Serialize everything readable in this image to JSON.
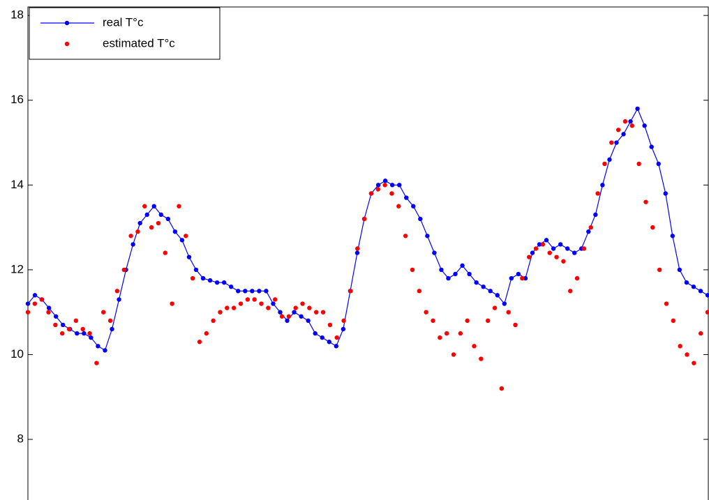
{
  "chart_data": {
    "type": "line",
    "ylim": [
      6.57,
      18.2
    ],
    "yticks": [
      8,
      10,
      12,
      14,
      16,
      18
    ],
    "legend": "upper left",
    "series": [
      {
        "name": "real T°c",
        "color": "#0000ff",
        "style": "line-marker",
        "values": [
          11.2,
          11.4,
          11.3,
          11.1,
          10.9,
          10.7,
          10.6,
          10.5,
          10.5,
          10.4,
          10.2,
          10.1,
          10.6,
          11.3,
          12.0,
          12.6,
          13.1,
          13.3,
          13.5,
          13.3,
          13.2,
          12.9,
          12.7,
          12.3,
          12.0,
          11.8,
          11.75,
          11.7,
          11.7,
          11.6,
          11.5,
          11.5,
          11.5,
          11.5,
          11.5,
          11.2,
          11.0,
          10.8,
          11.0,
          10.9,
          10.8,
          10.5,
          10.4,
          10.3,
          10.2,
          10.6,
          11.5,
          12.4,
          13.2,
          13.8,
          14.0,
          14.1,
          14.0,
          14.0,
          13.7,
          13.5,
          13.2,
          12.8,
          12.4,
          12.0,
          11.8,
          11.9,
          12.1,
          11.9,
          11.7,
          11.6,
          11.5,
          11.4,
          11.2,
          11.8,
          11.9,
          11.8,
          12.4,
          12.6,
          12.7,
          12.5,
          12.6,
          12.5,
          12.4,
          12.5,
          12.9,
          13.3,
          14.0,
          14.6,
          15.0,
          15.2,
          15.5,
          15.8,
          15.4,
          14.9,
          14.5,
          13.8,
          12.8,
          12.0,
          11.7,
          11.6,
          11.5,
          11.4
        ]
      },
      {
        "name": "estimated T°c",
        "color": "#ff0000",
        "style": "marker",
        "values": [
          11.0,
          11.2,
          11.3,
          11.0,
          10.7,
          10.5,
          10.6,
          10.8,
          10.6,
          10.5,
          9.8,
          11.0,
          10.8,
          11.5,
          12.0,
          12.8,
          12.9,
          13.5,
          13.0,
          13.1,
          12.4,
          11.2,
          13.5,
          12.8,
          11.8,
          10.3,
          10.5,
          10.8,
          11.0,
          11.1,
          11.1,
          11.2,
          11.3,
          11.3,
          11.2,
          11.1,
          11.3,
          10.9,
          10.9,
          11.1,
          11.2,
          11.1,
          11.0,
          11.0,
          10.7,
          10.4,
          10.8,
          11.5,
          12.5,
          13.2,
          13.8,
          13.9,
          14.0,
          13.8,
          13.5,
          12.8,
          12.0,
          11.5,
          11.0,
          10.8,
          10.4,
          10.5,
          10.0,
          10.5,
          10.8,
          10.2,
          9.9,
          10.8,
          11.1,
          9.2,
          11.0,
          10.7,
          11.8,
          12.3,
          12.5,
          12.6,
          12.4,
          12.3,
          12.2,
          11.5,
          11.8,
          12.5,
          13.0,
          13.8,
          14.5,
          15.0,
          15.3,
          15.5,
          15.4,
          14.5,
          13.6,
          13.0,
          12.0,
          11.2,
          10.8,
          10.2,
          10.0,
          9.8,
          10.5,
          11.0
        ]
      }
    ]
  }
}
